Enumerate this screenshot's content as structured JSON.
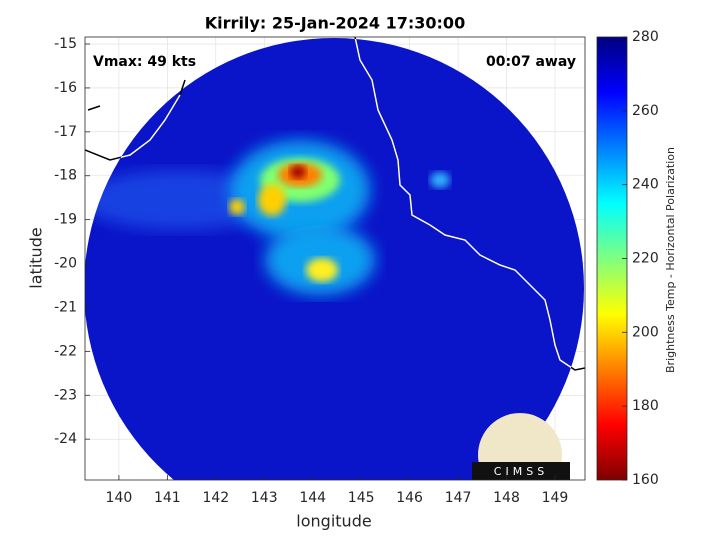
{
  "chart_data": {
    "type": "map",
    "title": "Kirrily: 25-Jan-2024 17:30:00",
    "annotations": [
      "Vmax: 49 kts",
      "00:07 away"
    ],
    "xlabel": "longitude",
    "ylabel": "latitude",
    "xlim": [
      139.3,
      149.62
    ],
    "ylim": [
      -24.93,
      -14.84
    ],
    "xticks": [
      140,
      141,
      142,
      143,
      144,
      145,
      146,
      147,
      148,
      149
    ],
    "yticks": [
      -15,
      -16,
      -17,
      -18,
      -19,
      -20,
      -21,
      -22,
      -23,
      -24
    ],
    "grid": true,
    "colorbar": {
      "label": "Brightness Temp - Horizontal Polarization",
      "lim": [
        160,
        280
      ],
      "ticks": [
        160,
        180,
        200,
        220,
        240,
        260,
        280
      ]
    },
    "logo": "CIMSS"
  }
}
